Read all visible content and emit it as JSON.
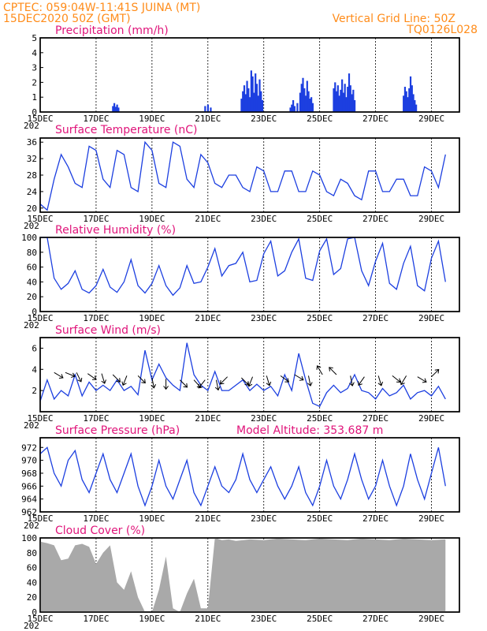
{
  "header": {
    "line1": "CPTEC:   059:04W-11:41S   JUINA (MT)",
    "line2": "15DEC2020 50Z (GMT)",
    "grid_note": "Vertical Grid Line: 50Z",
    "code": "TQ0126L028"
  },
  "x_ticks": [
    "15DEC",
    "17DEC",
    "19DEC",
    "21DEC",
    "23DEC",
    "25DEC",
    "27DEC",
    "29DEC"
  ],
  "x_year_fragment": "202",
  "colors": {
    "header": "#ff8c1a",
    "title": "#e0147a",
    "line": "#1c3fe0",
    "bar": "#1c3fe0",
    "cloud": "#a9a9a9",
    "arrow": "#000000"
  },
  "chart_data": [
    {
      "type": "bar",
      "title": "Precipitation (mm/h)",
      "ylim": [
        0,
        5
      ],
      "yticks": [
        "0",
        "1",
        "2",
        "3",
        "4",
        "5"
      ],
      "x_unit": "days since 15DEC",
      "points": [
        [
          2.6,
          0.4
        ],
        [
          2.65,
          0.6
        ],
        [
          2.7,
          0.35
        ],
        [
          2.75,
          0.5
        ],
        [
          2.8,
          0.3
        ],
        [
          5.9,
          0.4
        ],
        [
          6.0,
          0.5
        ],
        [
          6.1,
          0.3
        ],
        [
          7.2,
          0.9
        ],
        [
          7.25,
          1.4
        ],
        [
          7.3,
          1.8
        ],
        [
          7.35,
          1.2
        ],
        [
          7.4,
          2.1
        ],
        [
          7.45,
          1.6
        ],
        [
          7.5,
          1.0
        ],
        [
          7.55,
          2.8
        ],
        [
          7.6,
          2.4
        ],
        [
          7.65,
          1.3
        ],
        [
          7.7,
          2.6
        ],
        [
          7.75,
          1.9
        ],
        [
          7.8,
          1.1
        ],
        [
          7.85,
          2.2
        ],
        [
          7.9,
          1.4
        ],
        [
          7.95,
          0.8
        ],
        [
          8.95,
          0.3
        ],
        [
          9.0,
          0.5
        ],
        [
          9.05,
          0.8
        ],
        [
          9.1,
          0.4
        ],
        [
          9.2,
          0.6
        ],
        [
          9.3,
          1.3
        ],
        [
          9.35,
          1.9
        ],
        [
          9.4,
          2.3
        ],
        [
          9.45,
          1.6
        ],
        [
          9.5,
          1.1
        ],
        [
          9.55,
          2.1
        ],
        [
          9.6,
          1.4
        ],
        [
          9.65,
          0.9
        ],
        [
          9.7,
          1.0
        ],
        [
          9.75,
          0.6
        ],
        [
          10.5,
          1.6
        ],
        [
          10.55,
          2.0
        ],
        [
          10.6,
          1.4
        ],
        [
          10.65,
          1.8
        ],
        [
          10.7,
          1.1
        ],
        [
          10.75,
          1.5
        ],
        [
          10.8,
          2.2
        ],
        [
          10.85,
          1.3
        ],
        [
          10.9,
          1.9
        ],
        [
          10.95,
          1.0
        ],
        [
          11.0,
          1.7
        ],
        [
          11.05,
          2.6
        ],
        [
          11.1,
          1.8
        ],
        [
          11.15,
          1.2
        ],
        [
          11.2,
          1.5
        ],
        [
          11.25,
          0.8
        ],
        [
          13.0,
          1.1
        ],
        [
          13.05,
          1.7
        ],
        [
          13.1,
          1.4
        ],
        [
          13.15,
          1.0
        ],
        [
          13.2,
          1.6
        ],
        [
          13.25,
          2.4
        ],
        [
          13.3,
          1.8
        ],
        [
          13.35,
          1.2
        ],
        [
          13.4,
          0.8
        ],
        [
          13.45,
          0.5
        ]
      ],
      "unit": "mm/h"
    },
    {
      "type": "line",
      "title": "Surface Temperature (nC)",
      "ylim": [
        19,
        37
      ],
      "yticks": [
        "20",
        "24",
        "28",
        "32",
        "36"
      ],
      "x_unit": "days since 15DEC",
      "x": [
        0,
        0.25,
        0.5,
        0.75,
        1,
        1.25,
        1.5,
        1.75,
        2,
        2.25,
        2.5,
        2.75,
        3,
        3.25,
        3.5,
        3.75,
        4,
        4.25,
        4.5,
        4.75,
        5,
        5.25,
        5.5,
        5.75,
        6,
        6.25,
        6.5,
        6.75,
        7,
        7.25,
        7.5,
        7.75,
        8,
        8.25,
        8.5,
        8.75,
        9,
        9.25,
        9.5,
        9.75,
        10,
        10.25,
        10.5,
        10.75,
        11,
        11.25,
        11.5,
        11.75,
        12,
        12.25,
        12.5,
        12.75,
        13,
        13.25,
        13.5,
        13.75,
        14,
        14.25,
        14.5
      ],
      "values": [
        21,
        19.5,
        27,
        33,
        30,
        26,
        25,
        35,
        34,
        27,
        25,
        34,
        33,
        25,
        24,
        36,
        34,
        26,
        25,
        36,
        35,
        27,
        25,
        33,
        31,
        26,
        25,
        28,
        28,
        25,
        24,
        30,
        29,
        24,
        24,
        29,
        29,
        24,
        24,
        29,
        28,
        24,
        23,
        27,
        26,
        23,
        22,
        29,
        29,
        24,
        24,
        27,
        27,
        23,
        23,
        30,
        29,
        25,
        33
      ]
    },
    {
      "type": "line",
      "title": "Relative Humidity (%)",
      "ylim": [
        0,
        100
      ],
      "yticks": [
        "0",
        "20",
        "40",
        "60",
        "80",
        "100"
      ],
      "x_unit": "days since 15DEC",
      "x": [
        0,
        0.25,
        0.5,
        0.75,
        1,
        1.25,
        1.5,
        1.75,
        2,
        2.25,
        2.5,
        2.75,
        3,
        3.25,
        3.5,
        3.75,
        4,
        4.25,
        4.5,
        4.75,
        5,
        5.25,
        5.5,
        5.75,
        6,
        6.25,
        6.5,
        6.75,
        7,
        7.25,
        7.5,
        7.75,
        8,
        8.25,
        8.5,
        8.75,
        9,
        9.25,
        9.5,
        9.75,
        10,
        10.25,
        10.5,
        10.75,
        11,
        11.25,
        11.5,
        11.75,
        12,
        12.25,
        12.5,
        12.75,
        13,
        13.25,
        13.5,
        13.75,
        14,
        14.25,
        14.5
      ],
      "values": [
        100,
        100,
        45,
        30,
        38,
        55,
        30,
        25,
        35,
        57,
        33,
        26,
        40,
        70,
        35,
        25,
        38,
        62,
        35,
        22,
        32,
        62,
        38,
        40,
        60,
        85,
        48,
        62,
        65,
        80,
        40,
        42,
        78,
        95,
        48,
        55,
        80,
        98,
        45,
        42,
        82,
        98,
        50,
        58,
        98,
        100,
        55,
        35,
        68,
        92,
        38,
        30,
        65,
        88,
        35,
        28,
        72,
        95,
        40
      ]
    },
    {
      "type": "line",
      "title": "Surface Wind (m/s)",
      "ylim": [
        0,
        7
      ],
      "yticks": [
        "2",
        "4",
        "6"
      ],
      "x_unit": "days since 15DEC",
      "x": [
        0,
        0.25,
        0.5,
        0.75,
        1,
        1.25,
        1.5,
        1.75,
        2,
        2.25,
        2.5,
        2.75,
        3,
        3.25,
        3.5,
        3.75,
        4,
        4.25,
        4.5,
        4.75,
        5,
        5.25,
        5.5,
        5.75,
        6,
        6.25,
        6.5,
        6.75,
        7,
        7.25,
        7.5,
        7.75,
        8,
        8.25,
        8.5,
        8.75,
        9,
        9.25,
        9.5,
        9.75,
        10,
        10.25,
        10.5,
        10.75,
        11,
        11.25,
        11.5,
        11.75,
        12,
        12.25,
        12.5,
        12.75,
        13,
        13.25,
        13.5,
        13.75,
        14,
        14.25,
        14.5
      ],
      "values": [
        1,
        3,
        1.2,
        2,
        1.5,
        3.5,
        1.5,
        2.8,
        2,
        2.5,
        2,
        3,
        2,
        2.4,
        1.6,
        5.8,
        3,
        4.5,
        3.2,
        2.5,
        2,
        6.5,
        3.5,
        2.5,
        2,
        3.8,
        2,
        2,
        2.5,
        3,
        2,
        2.6,
        2,
        2.4,
        1.5,
        3.5,
        2,
        5.5,
        3,
        0.8,
        0.5,
        1.8,
        2.5,
        1.8,
        2.2,
        3.5,
        2,
        1.8,
        1.2,
        2.2,
        1.5,
        1.8,
        2.5,
        1.2,
        1.8,
        2,
        1.5,
        2.4,
        1.2
      ],
      "arrows": [
        [
          0.5,
          3.7,
          1,
          -0.6
        ],
        [
          0.9,
          3.7,
          1,
          -0.4
        ],
        [
          1.3,
          3.7,
          0.5,
          -1
        ],
        [
          1.7,
          3.6,
          1,
          -0.7
        ],
        [
          2.2,
          3.6,
          0.3,
          -1
        ],
        [
          2.6,
          3.5,
          1,
          -1
        ],
        [
          3.1,
          3.4,
          -0.4,
          -1
        ],
        [
          3.5,
          3.4,
          1,
          -1
        ],
        [
          4.0,
          3.2,
          0.2,
          -1
        ],
        [
          4.5,
          3.1,
          0,
          -1
        ],
        [
          5.0,
          3.0,
          1,
          -1
        ],
        [
          5.5,
          3.0,
          0.9,
          -1
        ],
        [
          5.9,
          3.0,
          -0.8,
          -1
        ],
        [
          6.3,
          3.0,
          0.2,
          -1
        ],
        [
          6.7,
          3.3,
          -1,
          -1
        ],
        [
          7.2,
          3.2,
          1,
          -1
        ],
        [
          7.6,
          3.3,
          -0.4,
          -1
        ],
        [
          8.1,
          3.4,
          0.3,
          -1
        ],
        [
          8.6,
          3.4,
          0.8,
          -0.6
        ],
        [
          9.1,
          3.5,
          1,
          -0.6
        ],
        [
          9.6,
          3.4,
          0.2,
          -1
        ],
        [
          10.1,
          3.5,
          -0.6,
          1
        ],
        [
          10.6,
          3.5,
          -0.7,
          0.7
        ],
        [
          11.1,
          3.4,
          0.2,
          -1
        ],
        [
          11.6,
          3.3,
          -0.7,
          -1
        ],
        [
          12.1,
          3.4,
          0.3,
          -1
        ],
        [
          12.6,
          3.4,
          1,
          -0.8
        ],
        [
          13.1,
          3.4,
          -0.6,
          -1
        ],
        [
          13.5,
          3.3,
          1,
          -0.6
        ],
        [
          14.0,
          3.3,
          1,
          1
        ]
      ]
    },
    {
      "type": "line",
      "title": "Surface Pressure (hPa)",
      "subtitle": "Model Altitude: 353.687 m",
      "ylim": [
        962,
        973.5
      ],
      "yticks": [
        "962",
        "964",
        "966",
        "968",
        "970",
        "972"
      ],
      "x_unit": "days since 15DEC",
      "x": [
        0,
        0.25,
        0.5,
        0.75,
        1,
        1.25,
        1.5,
        1.75,
        2,
        2.25,
        2.5,
        2.75,
        3,
        3.25,
        3.5,
        3.75,
        4,
        4.25,
        4.5,
        4.75,
        5,
        5.25,
        5.5,
        5.75,
        6,
        6.25,
        6.5,
        6.75,
        7,
        7.25,
        7.5,
        7.75,
        8,
        8.25,
        8.5,
        8.75,
        9,
        9.25,
        9.5,
        9.75,
        10,
        10.25,
        10.5,
        10.75,
        11,
        11.25,
        11.5,
        11.75,
        12,
        12.25,
        12.5,
        12.75,
        13,
        13.25,
        13.5,
        13.75,
        14,
        14.25,
        14.5
      ],
      "values": [
        971,
        972,
        968,
        966,
        970,
        971.5,
        967,
        965,
        968,
        971,
        967,
        965,
        968,
        971,
        966,
        963,
        966,
        970,
        966,
        964,
        967,
        970,
        965,
        963,
        966,
        969,
        966,
        965,
        967,
        971,
        967,
        965,
        967,
        969,
        966,
        964,
        966,
        969,
        965,
        963,
        966,
        970,
        966,
        964,
        967,
        971,
        967,
        964,
        966,
        970,
        966,
        963,
        966,
        971,
        967,
        964,
        968,
        972,
        966
      ],
      "unit": "hPa"
    },
    {
      "type": "area",
      "title": "Cloud Cover (%)",
      "ylim": [
        0,
        100
      ],
      "yticks": [
        "0",
        "20",
        "40",
        "60",
        "80",
        "100"
      ],
      "x_unit": "days since 15DEC",
      "x": [
        0,
        0.25,
        0.5,
        0.75,
        1,
        1.25,
        1.5,
        1.75,
        2,
        2.25,
        2.5,
        2.75,
        3,
        3.25,
        3.5,
        3.75,
        4,
        4.25,
        4.5,
        4.75,
        5,
        5.25,
        5.5,
        5.75,
        6,
        6.25,
        6.5,
        6.75,
        7,
        7.5,
        8,
        8.5,
        9,
        9.5,
        10,
        10.5,
        11,
        11.5,
        12,
        12.5,
        13,
        13.5,
        14,
        14.5
      ],
      "values": [
        95,
        93,
        90,
        70,
        72,
        90,
        92,
        88,
        65,
        80,
        90,
        40,
        30,
        55,
        20,
        0,
        0,
        30,
        75,
        5,
        0,
        25,
        45,
        5,
        5,
        100,
        97,
        98,
        96,
        98,
        97,
        99,
        98,
        97,
        99,
        98,
        97,
        99,
        98,
        97,
        99,
        98,
        97,
        98
      ]
    }
  ]
}
